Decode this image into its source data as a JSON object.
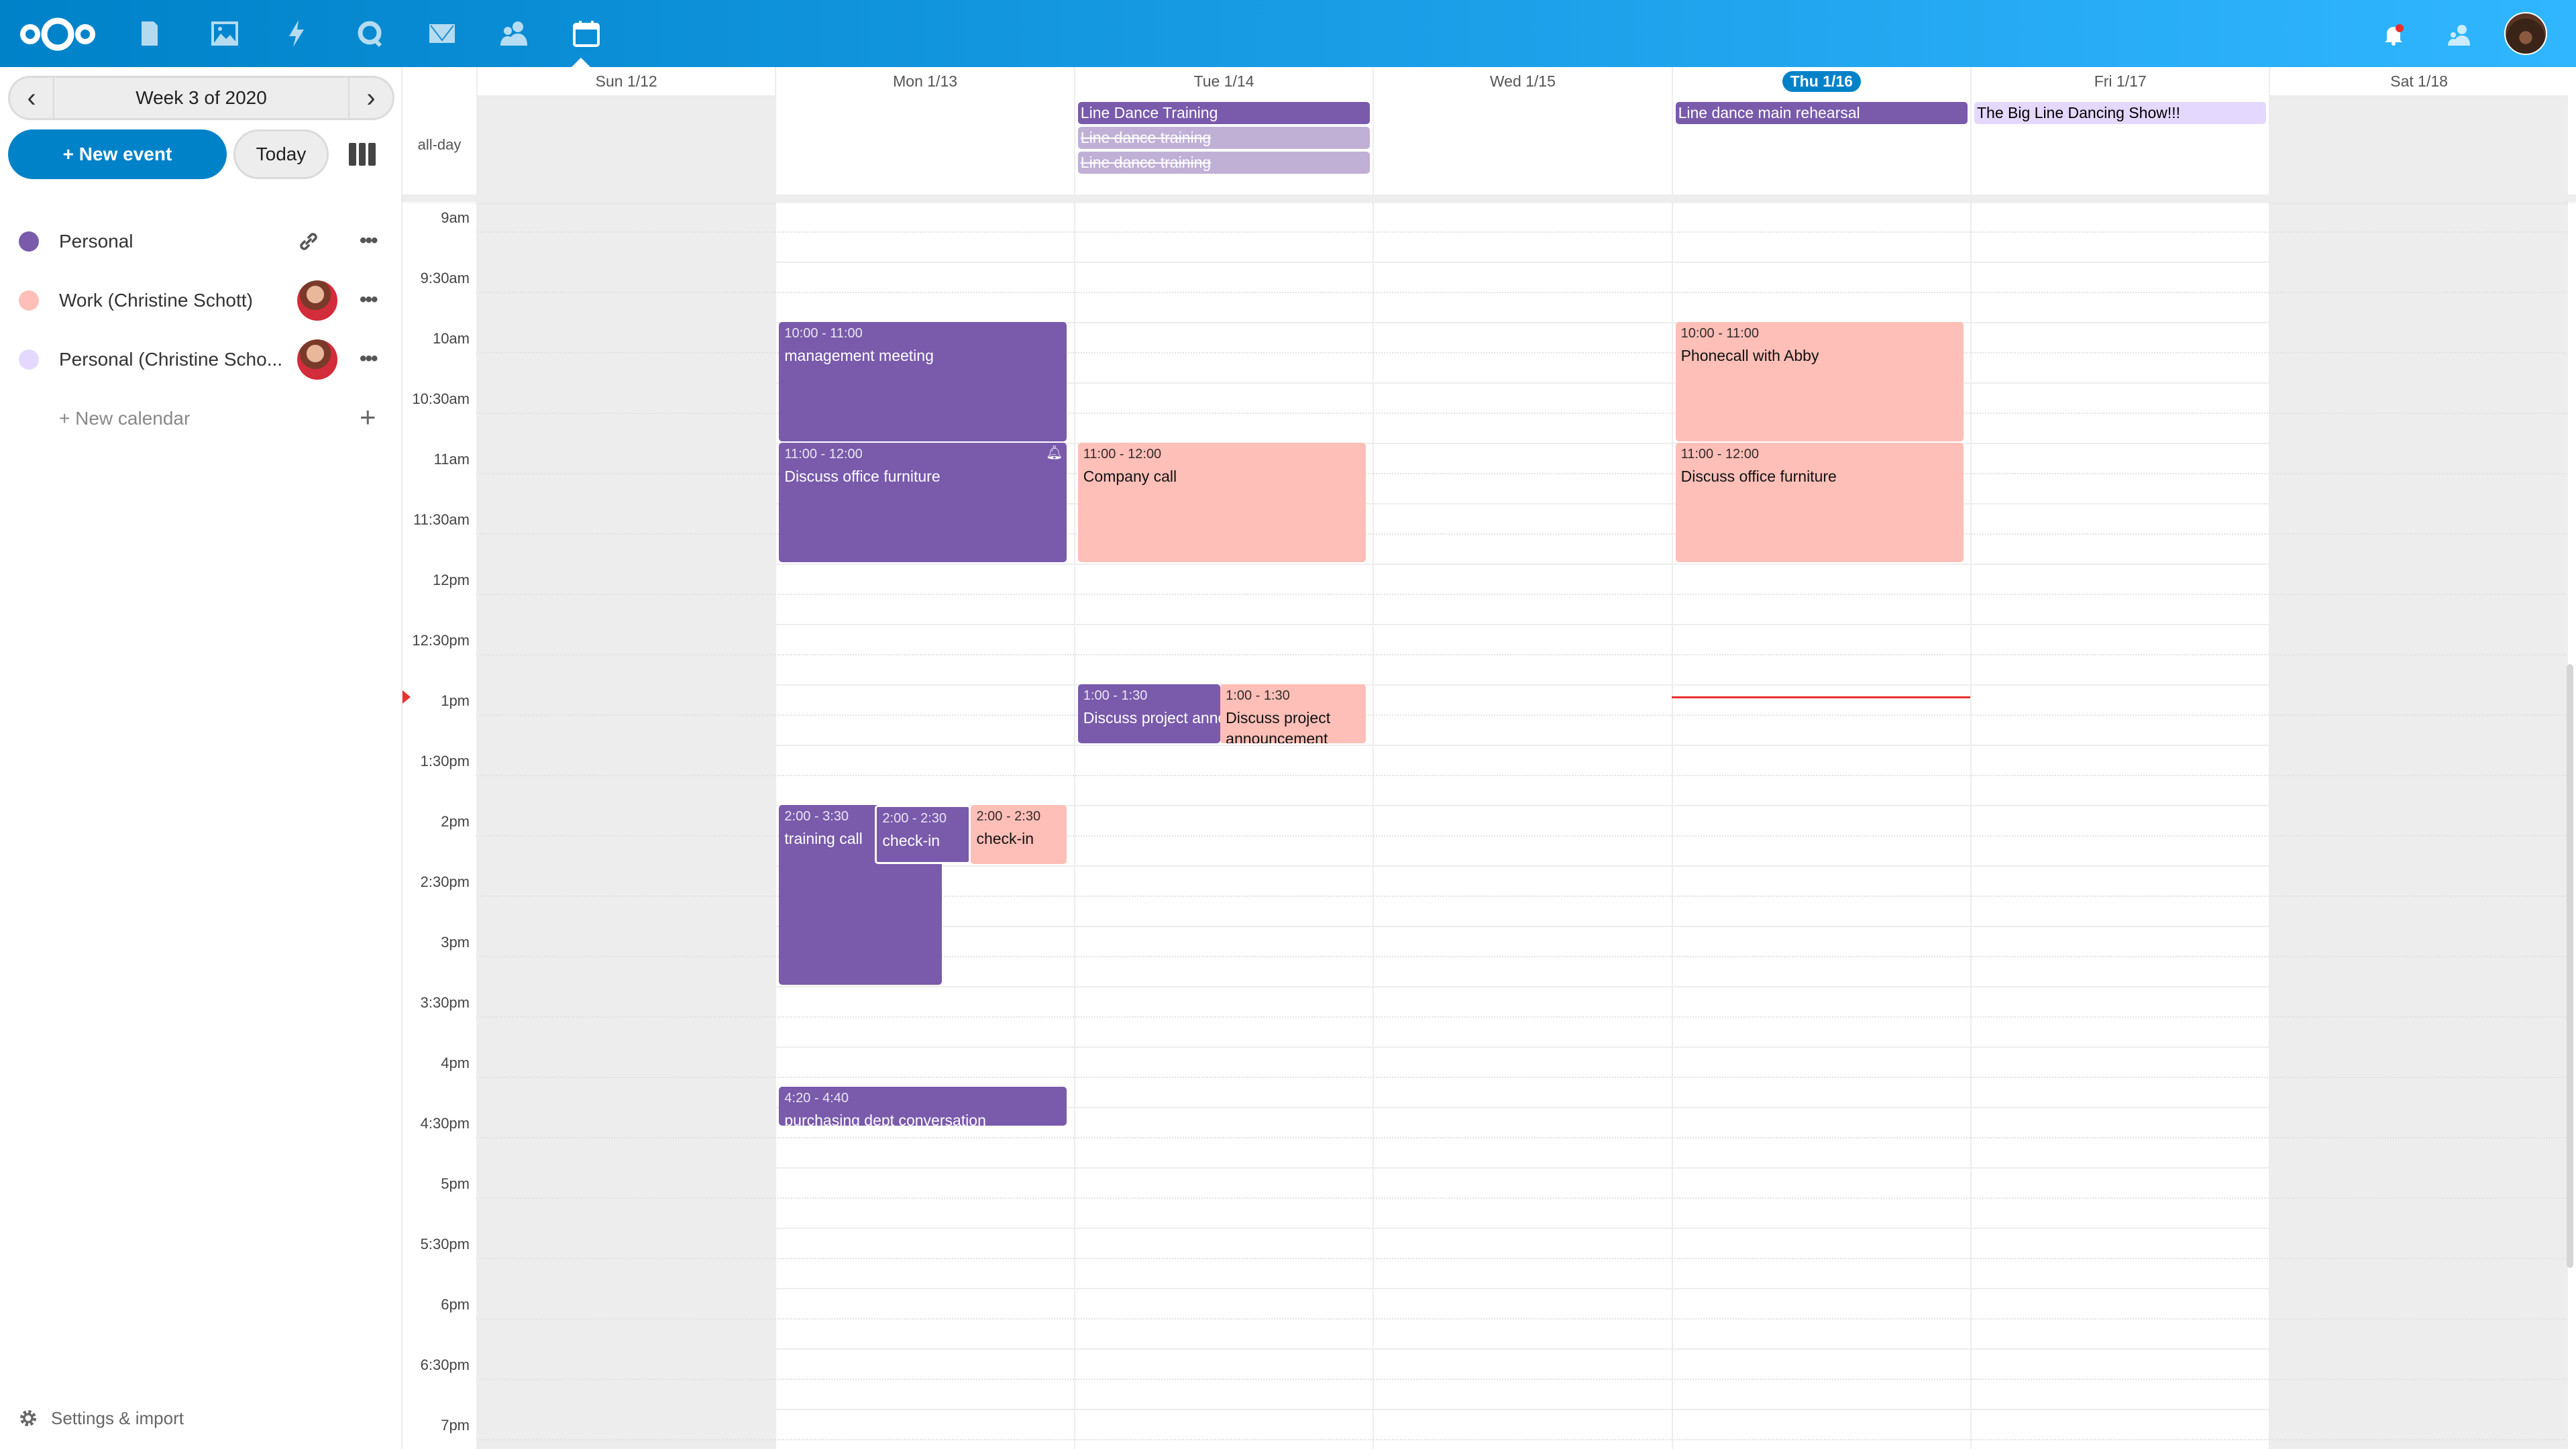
{
  "topbar": {
    "apps": [
      "files-icon",
      "photos-icon",
      "activity-icon",
      "talk-icon",
      "mail-icon",
      "contacts-icon",
      "calendar-icon"
    ],
    "active_app": "calendar-icon",
    "notification_dot_color": "#e9322d",
    "accent": "#0082c9"
  },
  "sidebar": {
    "week_label": "Week 3 of 2020",
    "new_event": "+ New event",
    "today": "Today",
    "calendars": [
      {
        "name": "Personal",
        "color": "#795aab",
        "action": "link-icon"
      },
      {
        "name": "Work (Christine Schott)",
        "color": "#fdbfb7",
        "action": "avatar"
      },
      {
        "name": "Personal (Christine Scho...",
        "color": "#e5d8ff",
        "action": "avatar"
      }
    ],
    "new_calendar": "+ New calendar",
    "settings": "Settings & import"
  },
  "calendar": {
    "allday_label": "all-day",
    "days": [
      {
        "label": "Sun 1/12",
        "weekend": true
      },
      {
        "label": "Mon 1/13"
      },
      {
        "label": "Tue 1/14"
      },
      {
        "label": "Wed 1/15"
      },
      {
        "label": "Thu 1/16",
        "today": true
      },
      {
        "label": "Fri 1/17"
      },
      {
        "label": "Sat 1/18",
        "weekend": true
      }
    ],
    "times": [
      "9am",
      "9:30am",
      "10am",
      "10:30am",
      "11am",
      "11:30am",
      "12pm",
      "12:30pm",
      "1pm",
      "1:30pm",
      "2pm",
      "2:30pm",
      "3pm",
      "3:30pm",
      "4pm",
      "4:30pm",
      "5pm",
      "5:30pm",
      "6pm",
      "6:30pm",
      "7pm"
    ],
    "now": "13:06",
    "allday_events": [
      {
        "day": 2,
        "title": "Line Dance Training",
        "color": "#795aab",
        "text": "#ffffff"
      },
      {
        "day": 2,
        "title": "Line dance training",
        "color": "#c0b0d6",
        "text": "#ffffff",
        "cancelled": true
      },
      {
        "day": 2,
        "title": "Line dance training",
        "color": "#c0b0d6",
        "text": "#ffffff",
        "cancelled": true
      },
      {
        "day": 4,
        "title": "Line dance main rehearsal",
        "color": "#795aab",
        "text": "#ffffff"
      },
      {
        "day": 5,
        "title": "The Big Line Dancing Show!!!",
        "color": "#e5d8ff",
        "text": "#000000"
      }
    ],
    "events": [
      {
        "day": 1,
        "start": "10:00",
        "end": "11:00",
        "time": "10:00 - 11:00",
        "title": "management meeting",
        "calendar": "purple"
      },
      {
        "day": 1,
        "start": "11:00",
        "end": "12:00",
        "time": "11:00 - 12:00",
        "title": "Discuss office furniture",
        "calendar": "purple",
        "alarm": true
      },
      {
        "day": 2,
        "start": "11:00",
        "end": "12:00",
        "time": "11:00 - 12:00",
        "title": "Company call",
        "calendar": "pink"
      },
      {
        "day": 4,
        "start": "10:00",
        "end": "11:00",
        "time": "10:00 - 11:00",
        "title": "Phonecall with Abby",
        "calendar": "pink"
      },
      {
        "day": 4,
        "start": "11:00",
        "end": "12:00",
        "time": "11:00 - 12:00",
        "title": "Discuss office furniture",
        "calendar": "pink"
      },
      {
        "day": 2,
        "start": "13:00",
        "end": "13:30",
        "time": "1:00 - 1:30",
        "title": "Discuss project announcement",
        "calendar": "purple"
      },
      {
        "day": 2,
        "start": "13:00",
        "end": "13:30",
        "time": "1:00 - 1:30",
        "title": "Discuss project announcement",
        "calendar": "pink"
      },
      {
        "day": 1,
        "start": "14:00",
        "end": "15:30",
        "time": "2:00 - 3:30",
        "title": "training call",
        "calendar": "purple"
      },
      {
        "day": 1,
        "start": "14:00",
        "end": "14:30",
        "time": "2:00 - 2:30",
        "title": "check-in",
        "calendar": "purple"
      },
      {
        "day": 1,
        "start": "14:00",
        "end": "14:30",
        "time": "2:00 - 2:30",
        "title": "check-in",
        "calendar": "pink"
      },
      {
        "day": 1,
        "start": "16:20",
        "end": "16:40",
        "time": "4:20 - 4:40",
        "title": "purchasing dept conversation",
        "calendar": "purple"
      }
    ]
  }
}
